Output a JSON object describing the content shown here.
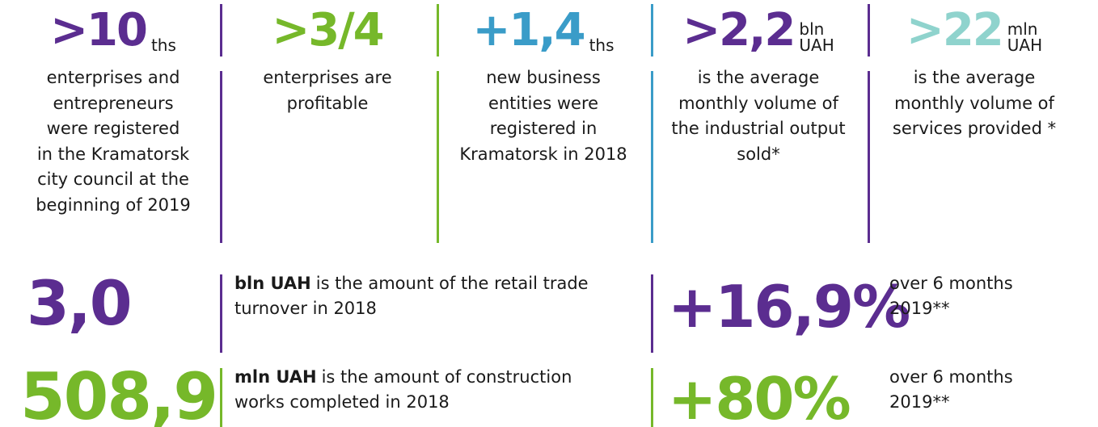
{
  "top": [
    {
      "number": ">10",
      "unit": [
        "ths"
      ],
      "description": [
        "enterprises and",
        "entrepreneurs",
        "were registered",
        "in the Kramatorsk",
        "city council at the",
        "beginning of 2019"
      ]
    },
    {
      "number": ">3/4",
      "unit": [],
      "description": [
        "enterprises are",
        "profitable"
      ]
    },
    {
      "number": "+1,4",
      "unit": [
        "ths"
      ],
      "description": [
        "new business",
        "entities were",
        "registered in",
        "Kramatorsk in 2018"
      ]
    },
    {
      "number": ">2,2",
      "unit": [
        "bln",
        "UAH"
      ],
      "description": [
        "is the average",
        "monthly volume of",
        "the industrial output",
        "sold*"
      ]
    },
    {
      "number": ">22",
      "unit": [
        "mln",
        "UAH"
      ],
      "description": [
        "is the average",
        "monthly volume of",
        "services provided *"
      ]
    }
  ],
  "bottom": [
    {
      "number": "3,0",
      "unit": "bln UAH",
      "description": [
        "is the amount of the retail trade",
        "turnover in 2018"
      ],
      "change": "+16,9%",
      "period": [
        "over 6 months",
        "2019**"
      ]
    },
    {
      "number": "508,9",
      "unit": "mln UAH",
      "description": [
        "is the amount of construction",
        "works completed in 2018"
      ],
      "change": "+80%",
      "period": [
        "over 6 months",
        "2019**"
      ]
    }
  ]
}
